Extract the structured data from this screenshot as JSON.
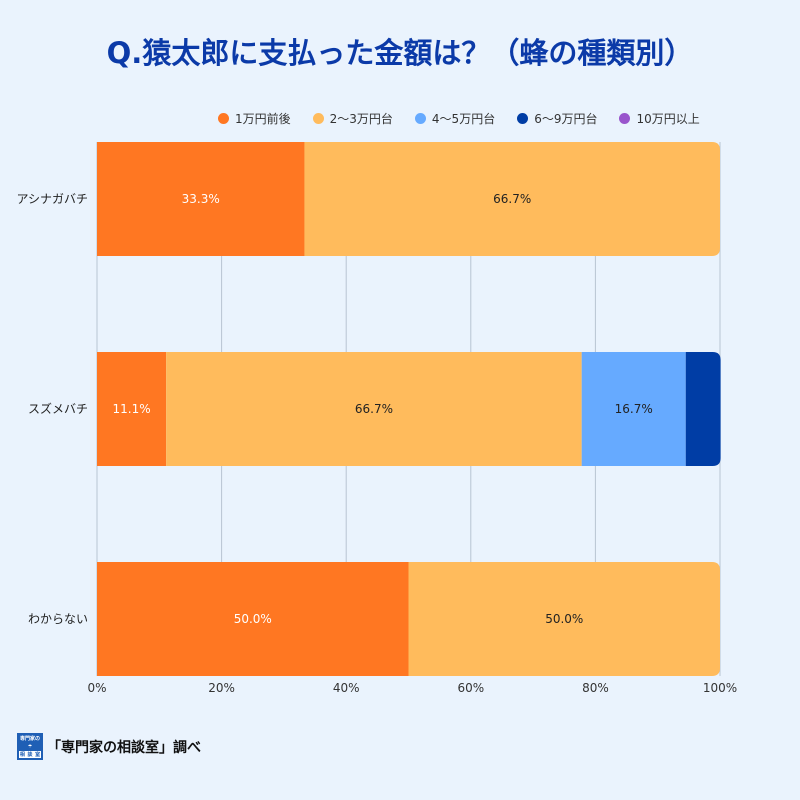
{
  "title": "Q.猿太郎に支払った金額は？（蜂の種類別）",
  "chart_data": {
    "type": "bar",
    "orientation": "horizontal",
    "stacked": true,
    "categories": [
      "アシナガバチ",
      "スズメバチ",
      "わからない"
    ],
    "series": [
      {
        "name": "1万円前後",
        "color": "#ff7722",
        "values": [
          33.3,
          11.1,
          50.0
        ]
      },
      {
        "name": "2〜3万円台",
        "color": "#ffbb5c",
        "values": [
          66.7,
          66.7,
          50.0
        ]
      },
      {
        "name": "4〜5万円台",
        "color": "#66aaff",
        "values": [
          0,
          16.7,
          0
        ]
      },
      {
        "name": "6〜9万円台",
        "color": "#003da5",
        "values": [
          0,
          5.6,
          0
        ]
      },
      {
        "name": "10万円以上",
        "color": "#9955cc",
        "values": [
          0,
          0,
          0
        ]
      }
    ],
    "data_labels": [
      [
        "33.3%",
        "66.7%",
        null,
        null,
        null
      ],
      [
        "11.1%",
        "66.7%",
        "16.7%",
        null,
        null
      ],
      [
        "50.0%",
        "50.0%",
        null,
        null,
        null
      ]
    ],
    "xlim": [
      0,
      100
    ],
    "xticks": [
      "0%",
      "20%",
      "40%",
      "60%",
      "80%",
      "100%"
    ],
    "grid": true,
    "legend": "top"
  },
  "footer": {
    "logo_text": "専門家の相談室",
    "credit": "「専門家の相談室」調べ"
  }
}
